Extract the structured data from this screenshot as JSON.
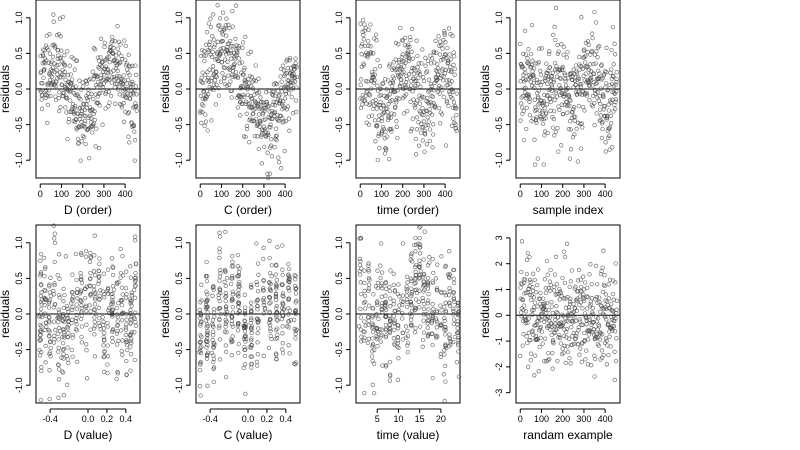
{
  "chart_data": [
    {
      "type": "scatter",
      "xlabel": "D (order)",
      "ylabel": "residuals",
      "xlim": [
        -20,
        470
      ],
      "ylim": [
        -1.25,
        1.25
      ],
      "xticks": [
        0,
        100,
        200,
        300,
        400
      ],
      "yticks": [
        -1.0,
        -0.5,
        0.0,
        0.5,
        1.0
      ],
      "ytick_labels": [
        "-1.0",
        "-0.5",
        "0.0",
        "0.5",
        "1.0"
      ],
      "hline": 0,
      "gen": {
        "kind": "order",
        "n": 440,
        "xmax": 455,
        "amp": 0.35,
        "freq": 1.6,
        "phase": 0.2,
        "noise": 0.3,
        "seed": 11
      }
    },
    {
      "type": "scatter",
      "xlabel": "C (order)",
      "ylabel": "residuals",
      "xlim": [
        -20,
        470
      ],
      "ylim": [
        -1.25,
        1.25
      ],
      "xticks": [
        0,
        100,
        200,
        300,
        400
      ],
      "yticks": [
        -1.0,
        -0.5,
        0.0,
        0.5,
        1.0
      ],
      "ytick_labels": [
        "-1.0",
        "-0.5",
        "0.0",
        "0.5",
        "1.0"
      ],
      "hline": 0,
      "gen": {
        "kind": "order",
        "n": 440,
        "xmax": 455,
        "amp": 0.45,
        "freq": 1.1,
        "phase": 0.0,
        "noise": 0.3,
        "seed": 23
      }
    },
    {
      "type": "scatter",
      "xlabel": "time (order)",
      "ylabel": "residuals",
      "xlim": [
        -20,
        470
      ],
      "ylim": [
        -1.25,
        1.25
      ],
      "xticks": [
        0,
        100,
        200,
        300,
        400
      ],
      "yticks": [
        -1.0,
        -0.5,
        0.0,
        0.5,
        1.0
      ],
      "ytick_labels": [
        "-1.0",
        "-0.5",
        "0.0",
        "0.5",
        "1.0"
      ],
      "hline": 0,
      "gen": {
        "kind": "order",
        "n": 440,
        "xmax": 455,
        "amp": 0.3,
        "freq": 2.4,
        "phase": 1.0,
        "noise": 0.35,
        "seed": 37
      }
    },
    {
      "type": "scatter",
      "xlabel": "sample index",
      "ylabel": "residuals",
      "xlim": [
        -20,
        470
      ],
      "ylim": [
        -1.25,
        1.25
      ],
      "xticks": [
        0,
        100,
        200,
        300,
        400
      ],
      "yticks": [
        -1.0,
        -0.5,
        0.0,
        0.5,
        1.0
      ],
      "ytick_labels": [
        "-1.0",
        "-0.5",
        "0.0",
        "0.5",
        "1.0"
      ],
      "hline": 0,
      "gen": {
        "kind": "order",
        "n": 440,
        "xmax": 455,
        "amp": 0.2,
        "freq": 3.0,
        "phase": 0.5,
        "noise": 0.38,
        "seed": 53
      }
    },
    {
      "type": "scatter",
      "xlabel": "D (value)",
      "ylabel": "residuals",
      "xlim": [
        -0.55,
        0.55
      ],
      "ylim": [
        -1.25,
        1.25
      ],
      "xticks": [
        -0.4,
        0.0,
        0.2,
        0.4
      ],
      "xtick_labels": [
        "-0.4",
        "0.0",
        "0.2",
        "0.4"
      ],
      "yticks": [
        -1.0,
        -0.5,
        0.0,
        0.5,
        1.0
      ],
      "ytick_labels": [
        "-1.0",
        "-0.5",
        "0.0",
        "0.5",
        "1.0"
      ],
      "hline": 0,
      "gen": {
        "kind": "value",
        "n": 440,
        "xmin": -0.5,
        "xmax": 0.5,
        "columns": 22,
        "noise": 0.38,
        "seed": 67
      }
    },
    {
      "type": "scatter",
      "xlabel": "C (value)",
      "ylabel": "residuals",
      "xlim": [
        -0.55,
        0.55
      ],
      "ylim": [
        -1.25,
        1.25
      ],
      "xticks": [
        -0.4,
        0.0,
        0.2,
        0.4
      ],
      "xtick_labels": [
        "-0.4",
        "0.0",
        "0.2",
        "0.4"
      ],
      "yticks": [
        -1.0,
        -0.5,
        0.0,
        0.5,
        1.0
      ],
      "ytick_labels": [
        "-1.0",
        "-0.5",
        "0.0",
        "0.5",
        "1.0"
      ],
      "hline": 0,
      "gen": {
        "kind": "value",
        "n": 440,
        "xmin": -0.5,
        "xmax": 0.5,
        "columns": 16,
        "noise": 0.38,
        "seed": 79
      }
    },
    {
      "type": "scatter",
      "xlabel": "time (value)",
      "ylabel": "residuals",
      "xlim": [
        0,
        24.5
      ],
      "ylim": [
        -1.25,
        1.25
      ],
      "xticks": [
        5,
        10,
        15,
        20
      ],
      "yticks": [
        -1.0,
        -0.5,
        0.0,
        0.5,
        1.0
      ],
      "ytick_labels": [
        "-1.0",
        "-0.5",
        "0.0",
        "0.5",
        "1.0"
      ],
      "hline": 0,
      "gen": {
        "kind": "value",
        "n": 440,
        "xmin": 1,
        "xmax": 24,
        "columns": 24,
        "noise": 0.38,
        "seed": 97
      }
    },
    {
      "type": "scatter",
      "xlabel": "randam example",
      "ylabel": "residuals",
      "xlim": [
        -20,
        470
      ],
      "ylim": [
        -3.4,
        3.5
      ],
      "xticks": [
        0,
        100,
        200,
        300,
        400
      ],
      "yticks": [
        -3,
        -2,
        -1,
        0,
        1,
        2,
        3
      ],
      "ytick_labels": [
        "-3",
        "-2",
        "-1",
        "0",
        "1",
        "2",
        "3"
      ],
      "hline": 0,
      "gen": {
        "kind": "order",
        "n": 440,
        "xmax": 455,
        "amp": 0.0,
        "freq": 0.0,
        "phase": 0.0,
        "noise": 1.0,
        "seed": 113
      }
    }
  ]
}
